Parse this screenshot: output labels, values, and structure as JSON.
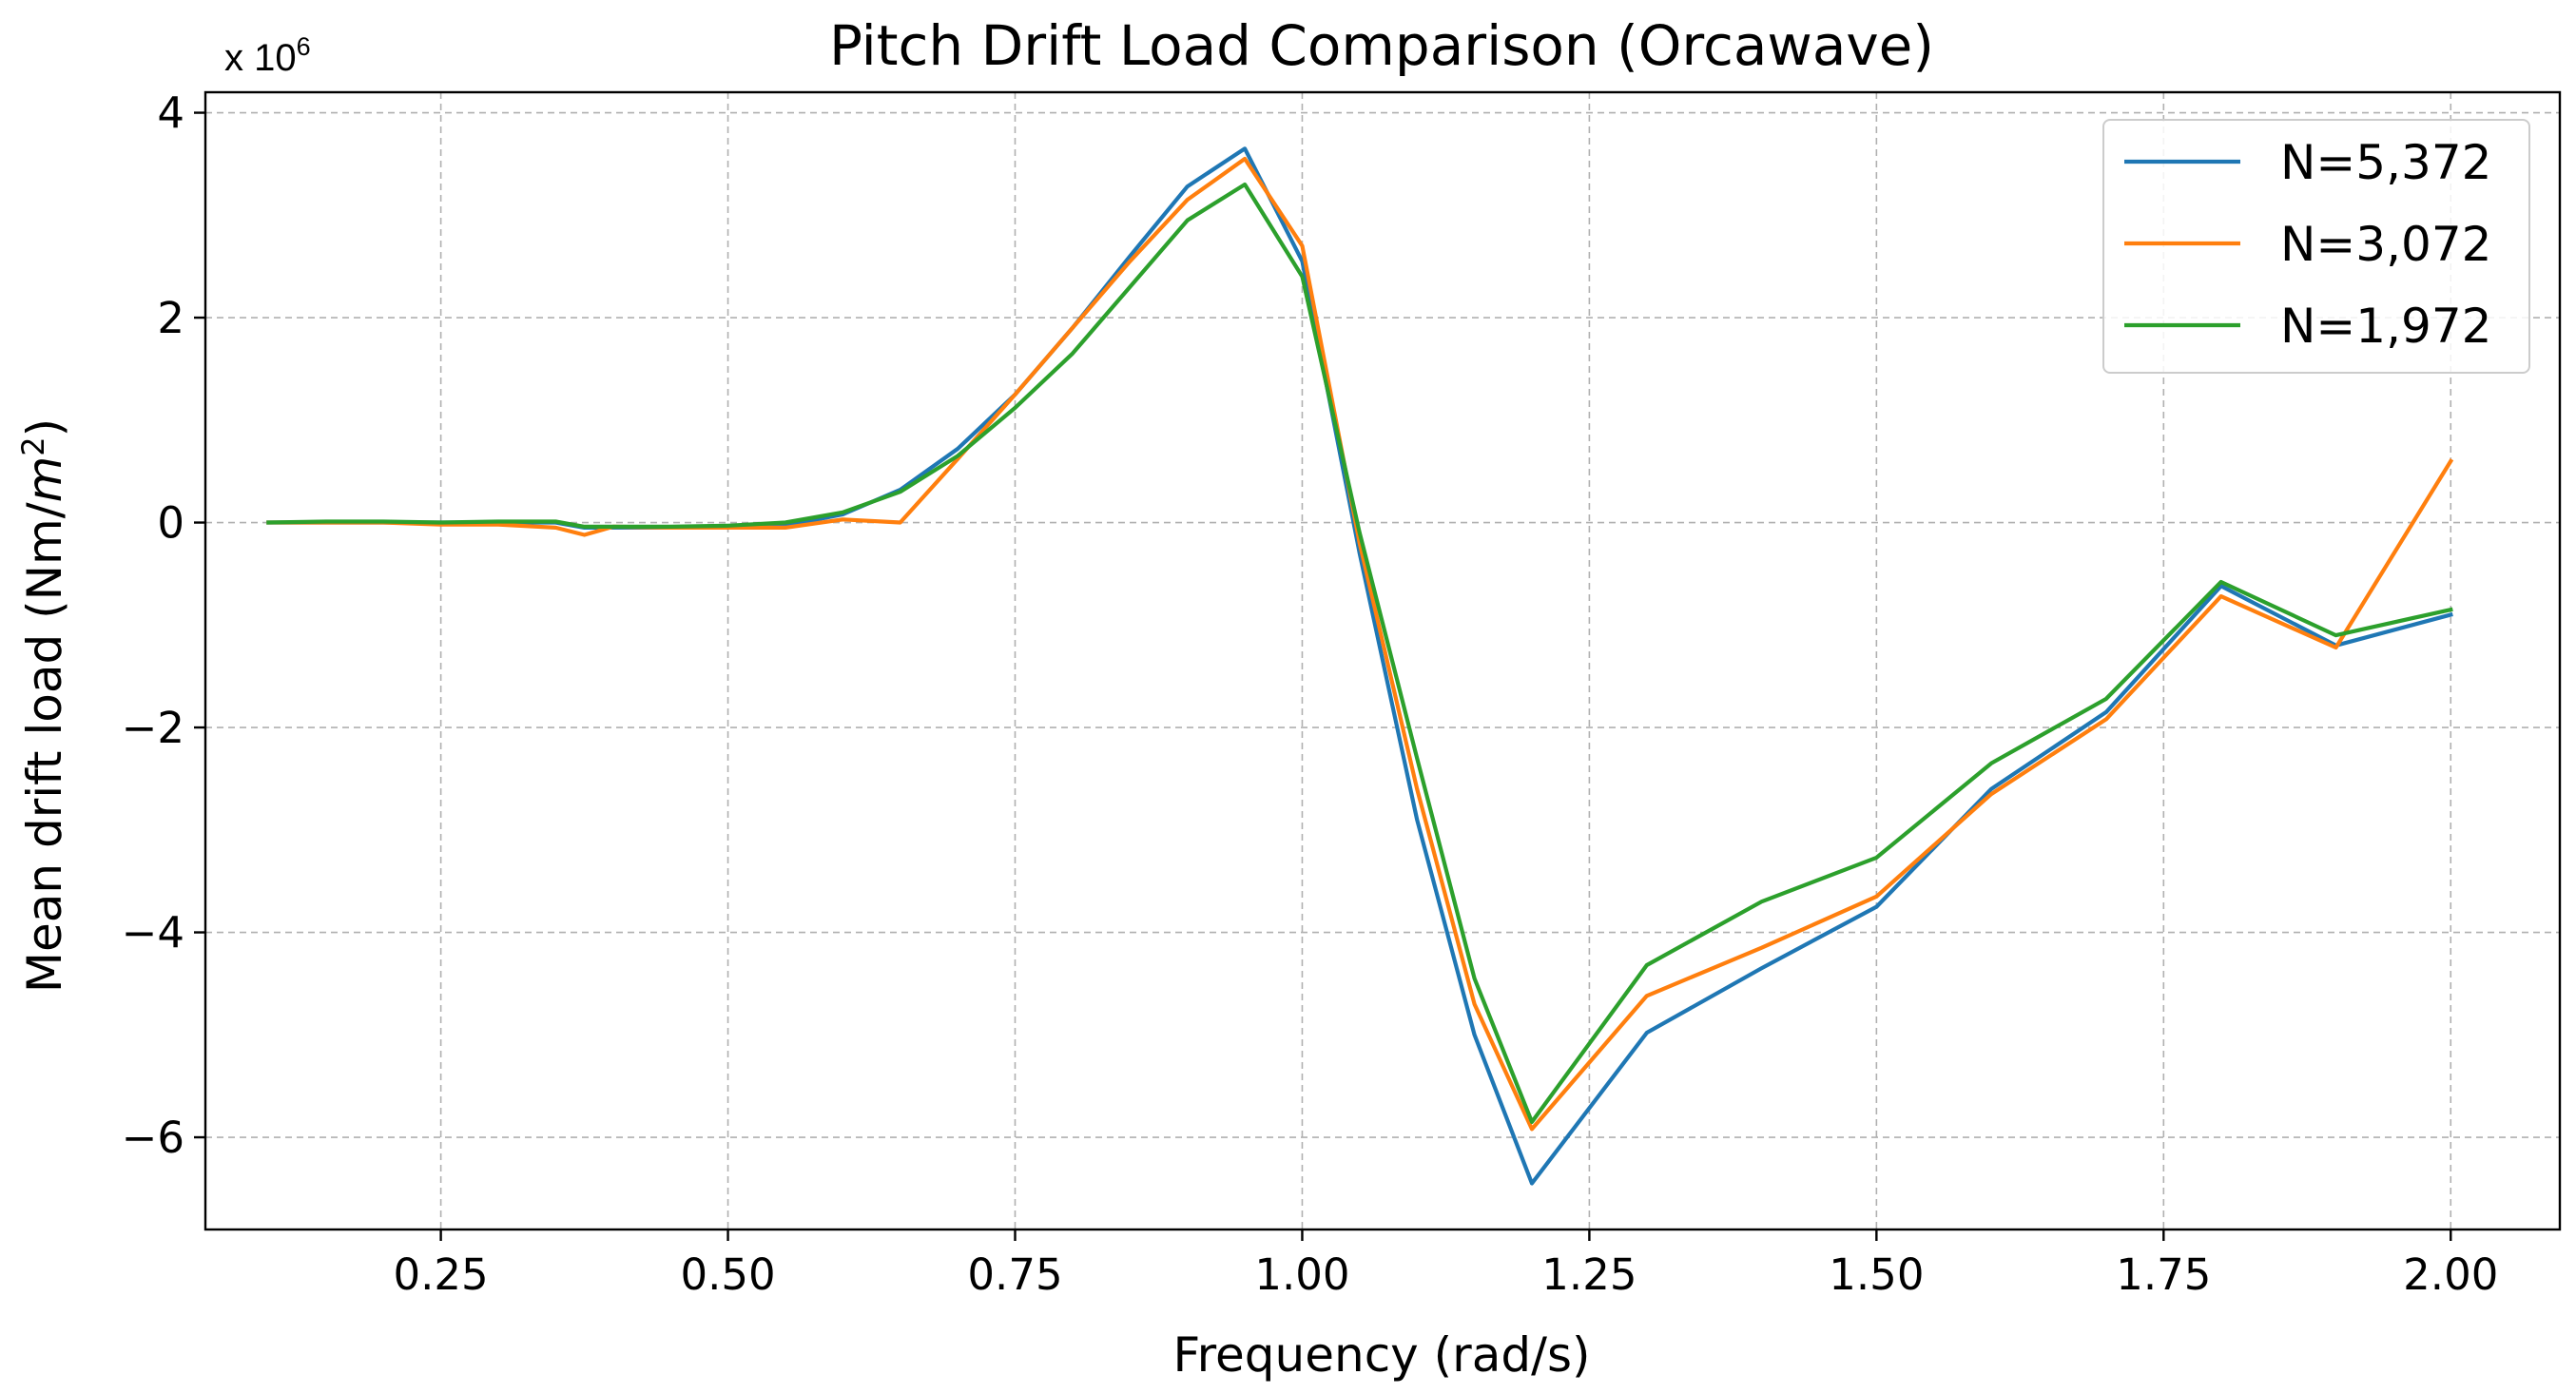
{
  "chart_data": {
    "type": "line",
    "title": "Pitch Drift Load Comparison (Orcawave)",
    "xlabel": "Frequency (rad/s)",
    "ylabel": "Mean drift load (Nm/m²)",
    "ylabel_main": "Mean drift load (Nm/",
    "ylabel_var": "m",
    "ylabel_sup": "2",
    "ylabel_close": ")",
    "scale_base": "x 10",
    "scale_exp": "6",
    "xlim": [
      0.045,
      2.095
    ],
    "ylim": [
      -6.9,
      4.2
    ],
    "x_ticks": [
      0.25,
      0.5,
      0.75,
      1.0,
      1.25,
      1.5,
      1.75,
      2.0
    ],
    "x_tick_labels": [
      "0.25",
      "0.50",
      "0.75",
      "1.00",
      "1.25",
      "1.50",
      "1.75",
      "2.00"
    ],
    "y_ticks": [
      -6,
      -4,
      -2,
      0,
      2,
      4
    ],
    "y_tick_labels": [
      "−6",
      "−4",
      "−2",
      "0",
      "2",
      "4"
    ],
    "grid": true,
    "legend_position": "top-right",
    "x": [
      0.1,
      0.15,
      0.2,
      0.25,
      0.3,
      0.35,
      0.375,
      0.4,
      0.45,
      0.5,
      0.55,
      0.6,
      0.65,
      0.7,
      0.75,
      0.8,
      0.85,
      0.9,
      0.95,
      1.0,
      1.05,
      1.1,
      1.15,
      1.2,
      1.3,
      1.4,
      1.5,
      1.6,
      1.7,
      1.8,
      1.9,
      2.0
    ],
    "series": [
      {
        "name": "N=5,372",
        "color": "#1f77b4",
        "values": [
          0.0,
          0.0,
          0.0,
          0.0,
          0.0,
          0.0,
          -0.05,
          -0.05,
          -0.05,
          -0.05,
          -0.03,
          0.08,
          0.32,
          0.72,
          1.25,
          1.9,
          2.6,
          3.28,
          3.65,
          2.55,
          -0.3,
          -2.9,
          -5.0,
          -6.45,
          -4.98,
          -4.35,
          -3.75,
          -2.6,
          -1.85,
          -0.62,
          -1.2,
          -0.9
        ]
      },
      {
        "name": "N=3,072",
        "color": "#ff7f0e",
        "values": [
          0.0,
          0.0,
          0.0,
          -0.02,
          -0.02,
          -0.05,
          -0.12,
          -0.04,
          -0.05,
          -0.05,
          -0.05,
          0.03,
          0.0,
          0.62,
          1.25,
          1.9,
          2.55,
          3.15,
          3.55,
          2.7,
          -0.2,
          -2.6,
          -4.7,
          -5.92,
          -4.62,
          -4.15,
          -3.65,
          -2.65,
          -1.92,
          -0.72,
          -1.22,
          0.6
        ]
      },
      {
        "name": "N=1,972",
        "color": "#2ca02c",
        "values": [
          0.0,
          0.01,
          0.01,
          0.0,
          0.01,
          0.01,
          -0.04,
          -0.04,
          -0.04,
          -0.03,
          0.0,
          0.1,
          0.3,
          0.65,
          1.12,
          1.65,
          2.3,
          2.95,
          3.3,
          2.4,
          -0.1,
          -2.3,
          -4.45,
          -5.85,
          -4.32,
          -3.7,
          -3.27,
          -2.35,
          -1.72,
          -0.58,
          -1.1,
          -0.85
        ]
      }
    ]
  }
}
